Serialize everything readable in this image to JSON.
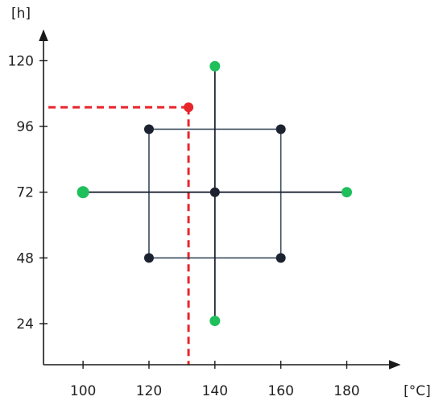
{
  "chart_data": {
    "type": "scatter",
    "title": "",
    "xlabel": "[°C]",
    "ylabel": "[h]",
    "xlim": [
      88,
      196
    ],
    "ylim": [
      9,
      131
    ],
    "x_ticks": [
      100,
      120,
      140,
      160,
      180
    ],
    "y_ticks": [
      24,
      48,
      72,
      96,
      120
    ],
    "grid": false,
    "series": [
      {
        "color": "#1c2230",
        "points": [
          {
            "x": 120,
            "y": 95
          },
          {
            "x": 160,
            "y": 95
          },
          {
            "x": 120,
            "y": 48
          },
          {
            "x": 160,
            "y": 48
          },
          {
            "x": 140,
            "y": 72
          }
        ]
      },
      {
        "color": "#1fbf5c",
        "points": [
          {
            "x": 140,
            "y": 118
          },
          {
            "x": 140,
            "y": 25
          },
          {
            "x": 100,
            "y": 72
          },
          {
            "x": 180,
            "y": 72
          }
        ]
      },
      {
        "color": "#e8252b",
        "points": [
          {
            "x": 132,
            "y": 103
          }
        ]
      }
    ],
    "lines": [
      {
        "from": [
          140,
          25
        ],
        "to": [
          140,
          118
        ],
        "color": "#1c2230",
        "style": "solid"
      },
      {
        "from": [
          100,
          72
        ],
        "to": [
          180,
          72
        ],
        "color": "#1c2230",
        "style": "solid"
      },
      {
        "from": [
          132,
          103
        ],
        "to": [
          88,
          103
        ],
        "color": "#e8252b",
        "style": "dashed"
      },
      {
        "from": [
          132,
          103
        ],
        "to": [
          132,
          9
        ],
        "color": "#e8252b",
        "style": "dashed"
      }
    ],
    "rectangle": {
      "x0": 120,
      "x1": 160,
      "y0": 48,
      "y1": 95,
      "color": "#3a4a5c"
    }
  }
}
